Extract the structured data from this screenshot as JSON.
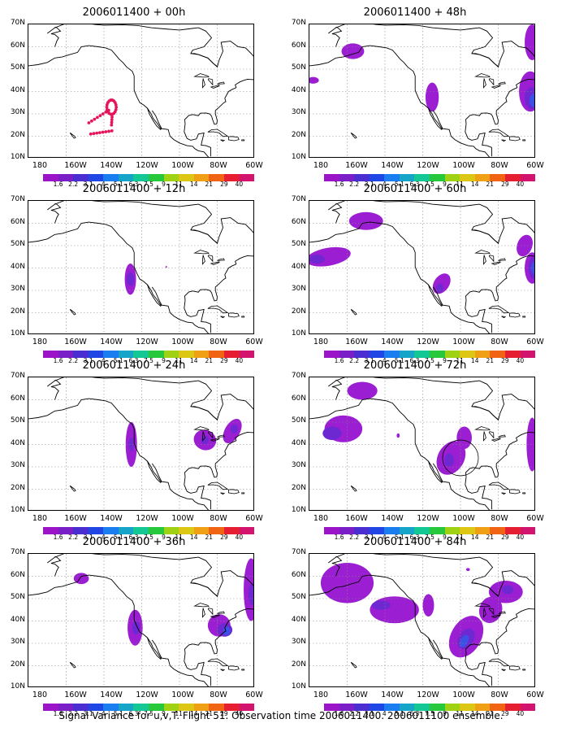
{
  "footer": "Signal Variance for u,v,T. Flight 51. Observation time 2006011400. 2006011100 ensemble.",
  "lat_labels": [
    "70N",
    "60N",
    "50N",
    "40N",
    "30N",
    "20N",
    "10N"
  ],
  "lon_labels": [
    "180",
    "160W",
    "140W",
    "120W",
    "100W",
    "80W",
    "60W"
  ],
  "colorbar": {
    "labels": [
      "1.6",
      "2.2",
      "3.1",
      "4",
      "5.1",
      "6.3",
      "7.5",
      "9",
      "11",
      "14",
      "21",
      "29",
      "40"
    ],
    "colors": [
      "#9b14c8",
      "#7a1ec8",
      "#4a2ed2",
      "#2046e6",
      "#1a7ef0",
      "#14a5c8",
      "#14c896",
      "#28c83c",
      "#a0d214",
      "#dcc814",
      "#f0a014",
      "#f06414",
      "#e61e32",
      "#d2146e"
    ]
  },
  "fill_colors": {
    "light": "#9b1ed2",
    "mid": "#6e28d2",
    "dark": "#3c50e6",
    "dots": "#e6145a"
  },
  "panels": [
    {
      "id": "p00",
      "title": "2006011400 + 00h"
    },
    {
      "id": "p48",
      "title": "2006011400 + 48h"
    },
    {
      "id": "p12",
      "title": "2006011400 + 12h"
    },
    {
      "id": "p60",
      "title": "2006011400 + 60h"
    },
    {
      "id": "p24",
      "title": "2006011400 + 24h"
    },
    {
      "id": "p72",
      "title": "2006011400 + 72h"
    },
    {
      "id": "p36",
      "title": "2006011400 + 36h"
    },
    {
      "id": "p84",
      "title": "2006011400 + 84h"
    }
  ]
}
